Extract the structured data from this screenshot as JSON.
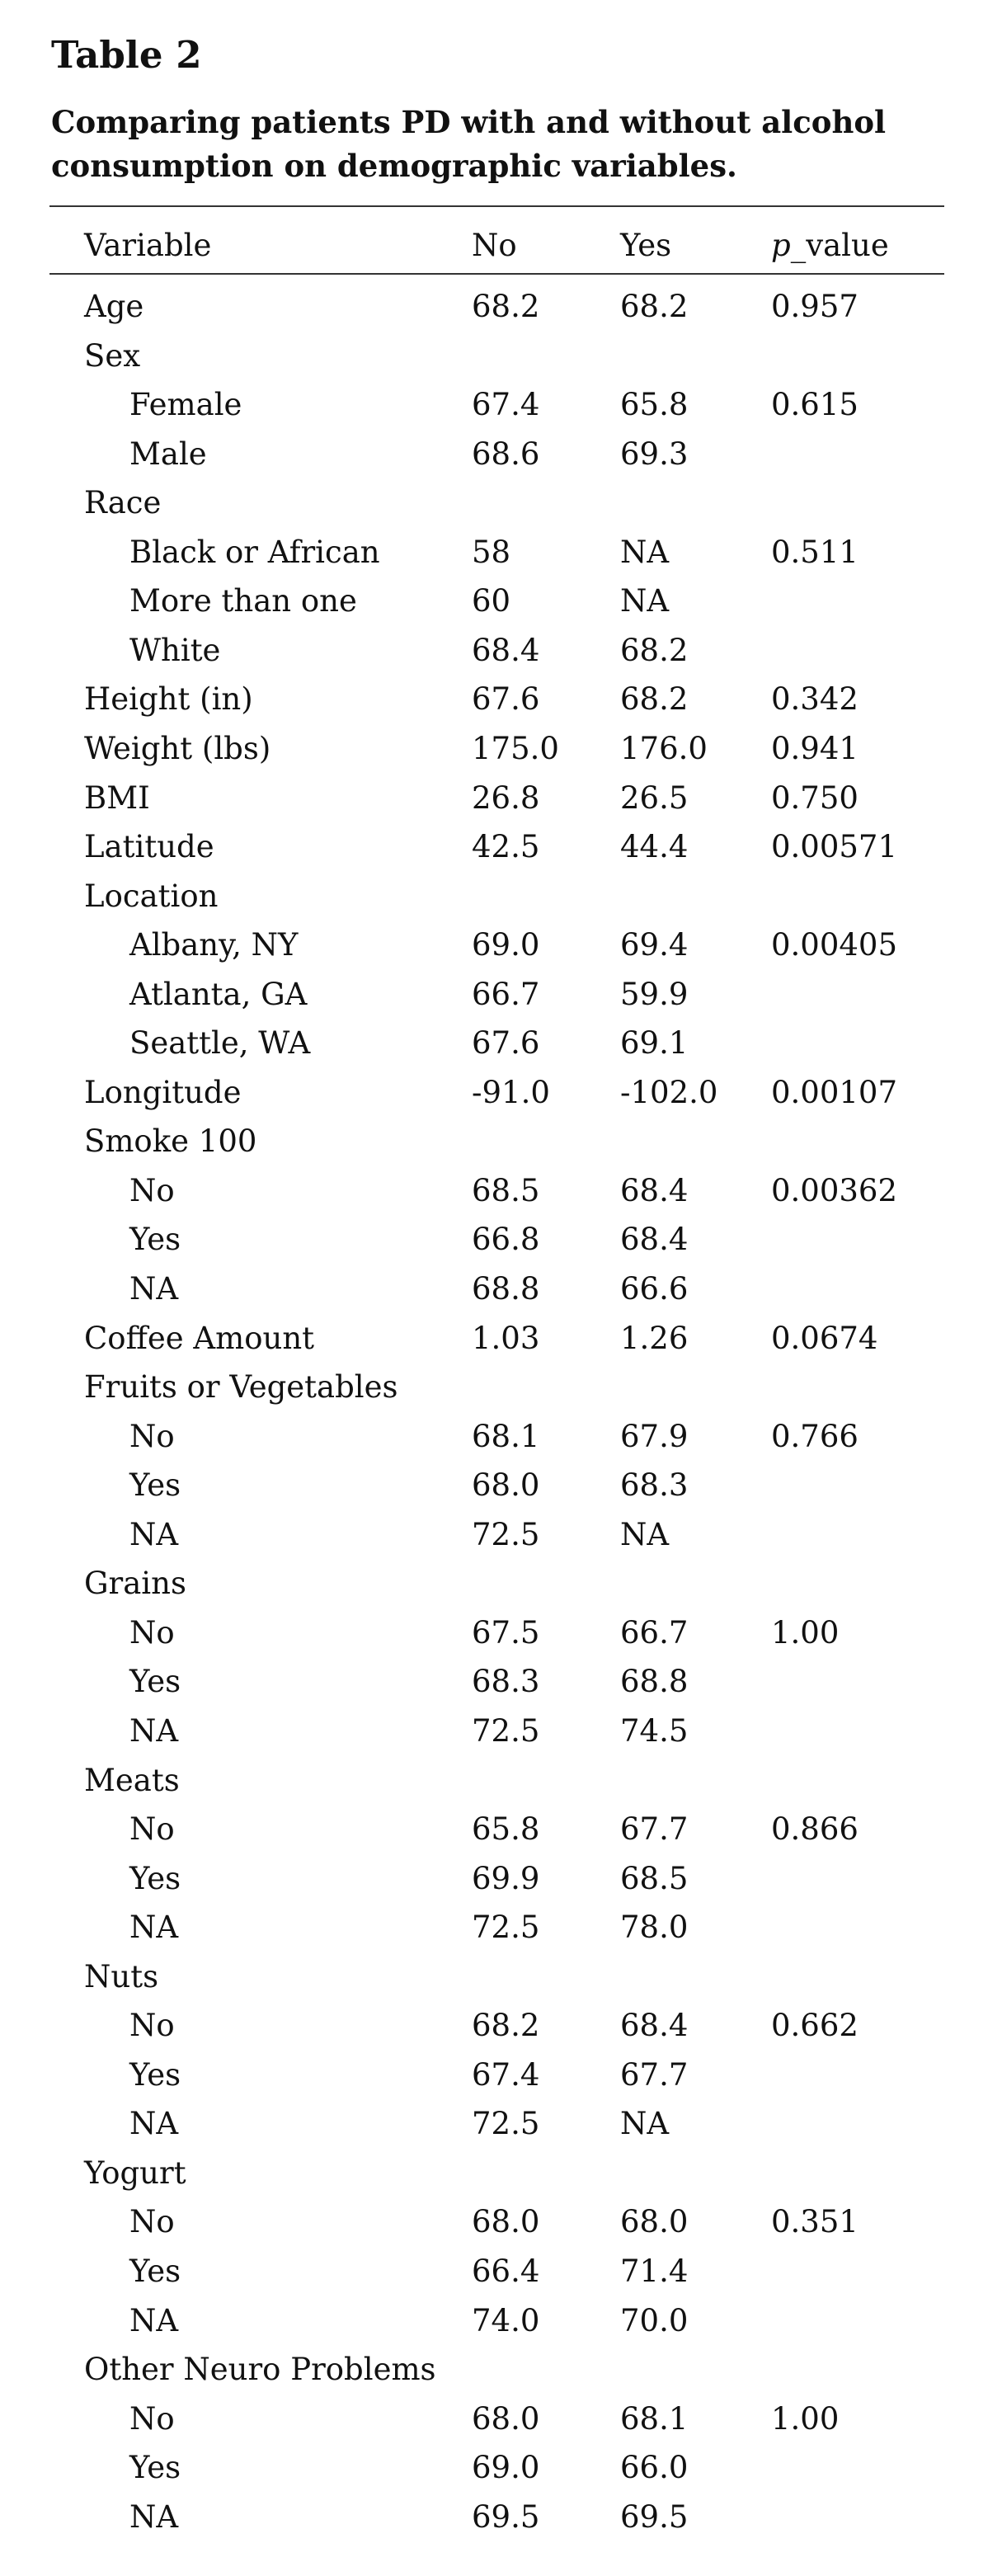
{
  "title": "Table 2",
  "caption": "Comparing patients PD with and without alcohol consumption on demographic variables.",
  "columns": {
    "variable": "Variable",
    "no": "No",
    "yes": "Yes",
    "p_italic": "p",
    "p_rest": "_value"
  },
  "rows": [
    {
      "label": "Age",
      "no": "68.2",
      "yes": "68.2",
      "p": "0.957",
      "indent": false
    },
    {
      "label": "Sex",
      "no": "",
      "yes": "",
      "p": "",
      "indent": false
    },
    {
      "label": "Female",
      "no": "67.4",
      "yes": "65.8",
      "p": "0.615",
      "indent": true
    },
    {
      "label": "Male",
      "no": "68.6",
      "yes": "69.3",
      "p": "",
      "indent": true
    },
    {
      "label": "Race",
      "no": "",
      "yes": "",
      "p": "",
      "indent": false
    },
    {
      "label": "Black or African",
      "no": "58",
      "yes": "NA",
      "p": "0.511",
      "indent": true
    },
    {
      "label": "More than one",
      "no": "60",
      "yes": "NA",
      "p": "",
      "indent": true
    },
    {
      "label": "White",
      "no": "68.4",
      "yes": "68.2",
      "p": "",
      "indent": true
    },
    {
      "label": "Height (in)",
      "no": "67.6",
      "yes": "68.2",
      "p": "0.342",
      "indent": false
    },
    {
      "label": "Weight (lbs)",
      "no": "175.0",
      "yes": "176.0",
      "p": "0.941",
      "indent": false
    },
    {
      "label": "BMI",
      "no": "26.8",
      "yes": "26.5",
      "p": "0.750",
      "indent": false
    },
    {
      "label": "Latitude",
      "no": "42.5",
      "yes": "44.4",
      "p": "0.00571",
      "indent": false
    },
    {
      "label": "Location",
      "no": "",
      "yes": "",
      "p": "",
      "indent": false
    },
    {
      "label": "Albany, NY",
      "no": "69.0",
      "yes": "69.4",
      "p": "0.00405",
      "indent": true
    },
    {
      "label": "Atlanta, GA",
      "no": "66.7",
      "yes": "59.9",
      "p": "",
      "indent": true
    },
    {
      "label": "Seattle, WA",
      "no": "67.6",
      "yes": "69.1",
      "p": "",
      "indent": true
    },
    {
      "label": "Longitude",
      "no": "-91.0",
      "yes": "-102.0",
      "p": "0.00107",
      "indent": false
    },
    {
      "label": "Smoke 100",
      "no": "",
      "yes": "",
      "p": "",
      "indent": false
    },
    {
      "label": "No",
      "no": "68.5",
      "yes": "68.4",
      "p": "0.00362",
      "indent": true
    },
    {
      "label": "Yes",
      "no": "66.8",
      "yes": "68.4",
      "p": "",
      "indent": true
    },
    {
      "label": "NA",
      "no": "68.8",
      "yes": "66.6",
      "p": "",
      "indent": true
    },
    {
      "label": "Coffee Amount",
      "no": "1.03",
      "yes": "1.26",
      "p": "0.0674",
      "indent": false
    },
    {
      "label": "Fruits or Vegetables",
      "no": "",
      "yes": "",
      "p": "",
      "indent": false
    },
    {
      "label": "No",
      "no": "68.1",
      "yes": "67.9",
      "p": "0.766",
      "indent": true
    },
    {
      "label": "Yes",
      "no": "68.0",
      "yes": "68.3",
      "p": "",
      "indent": true
    },
    {
      "label": "NA",
      "no": "72.5",
      "yes": "NA",
      "p": "",
      "indent": true
    },
    {
      "label": "Grains",
      "no": "",
      "yes": "",
      "p": "",
      "indent": false
    },
    {
      "label": "No",
      "no": "67.5",
      "yes": "66.7",
      "p": "1.00",
      "indent": true
    },
    {
      "label": "Yes",
      "no": "68.3",
      "yes": "68.8",
      "p": "",
      "indent": true
    },
    {
      "label": "NA",
      "no": "72.5",
      "yes": "74.5",
      "p": "",
      "indent": true
    },
    {
      "label": "Meats",
      "no": "",
      "yes": "",
      "p": "",
      "indent": false
    },
    {
      "label": "No",
      "no": "65.8",
      "yes": "67.7",
      "p": "0.866",
      "indent": true
    },
    {
      "label": "Yes",
      "no": "69.9",
      "yes": "68.5",
      "p": "",
      "indent": true
    },
    {
      "label": "NA",
      "no": "72.5",
      "yes": "78.0",
      "p": "",
      "indent": true
    },
    {
      "label": "Nuts",
      "no": "",
      "yes": "",
      "p": "",
      "indent": false
    },
    {
      "label": "No",
      "no": "68.2",
      "yes": "68.4",
      "p": "0.662",
      "indent": true
    },
    {
      "label": "Yes",
      "no": "67.4",
      "yes": "67.7",
      "p": "",
      "indent": true
    },
    {
      "label": "NA",
      "no": "72.5",
      "yes": "NA",
      "p": "",
      "indent": true
    },
    {
      "label": "Yogurt",
      "no": "",
      "yes": "",
      "p": "",
      "indent": false
    },
    {
      "label": "No",
      "no": "68.0",
      "yes": "68.0",
      "p": "0.351",
      "indent": true
    },
    {
      "label": "Yes",
      "no": "66.4",
      "yes": "71.4",
      "p": "",
      "indent": true
    },
    {
      "label": "NA",
      "no": "74.0",
      "yes": "70.0",
      "p": "",
      "indent": true
    },
    {
      "label": "Other Neuro Problems",
      "no": "",
      "yes": "",
      "p": "",
      "indent": false
    },
    {
      "label": "No",
      "no": "68.0",
      "yes": "68.1",
      "p": "1.00",
      "indent": true
    },
    {
      "label": "Yes",
      "no": "69.0",
      "yes": "66.0",
      "p": "",
      "indent": true
    },
    {
      "label": "NA",
      "no": "69.5",
      "yes": "69.5",
      "p": "",
      "indent": true
    }
  ]
}
